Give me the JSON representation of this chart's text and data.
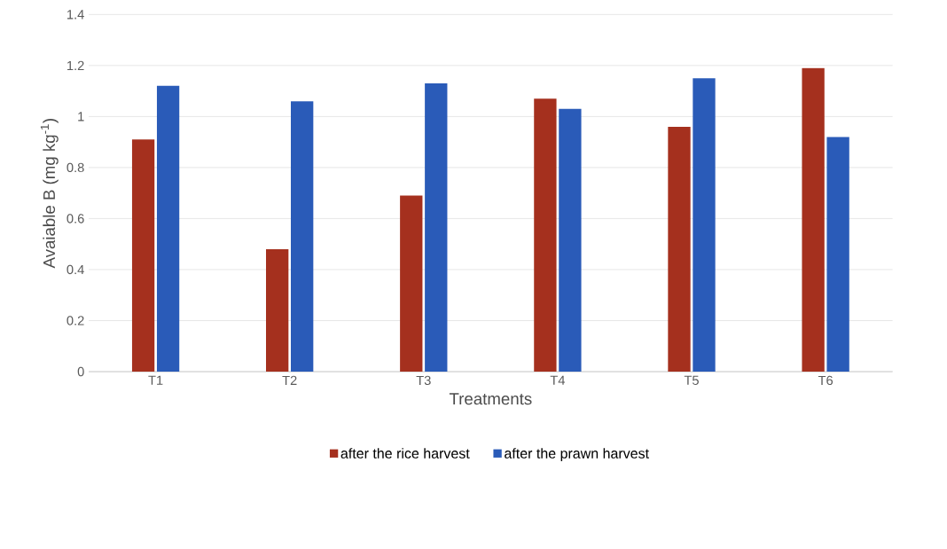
{
  "chart_data": {
    "type": "bar",
    "xlabel": "Treatments",
    "ylabel": "Avaiable B (mg kg$^{-1}$)",
    "categories": [
      "T1",
      "T2",
      "T3",
      "T4",
      "T5",
      "T6"
    ],
    "series": [
      {
        "name": "after the rice harvest",
        "color": "#a5301e",
        "values": [
          0.91,
          0.48,
          0.69,
          1.07,
          0.96,
          1.19
        ]
      },
      {
        "name": "after the prawn harvest",
        "color": "#2a5bb8",
        "values": [
          1.12,
          1.06,
          1.13,
          1.03,
          1.15,
          0.92
        ]
      }
    ],
    "ylim": [
      0,
      1.4
    ],
    "yticks": [
      0,
      0.2,
      0.4,
      0.6,
      0.8,
      1,
      1.2,
      1.4
    ],
    "grid": "y",
    "legend": "bottom"
  }
}
